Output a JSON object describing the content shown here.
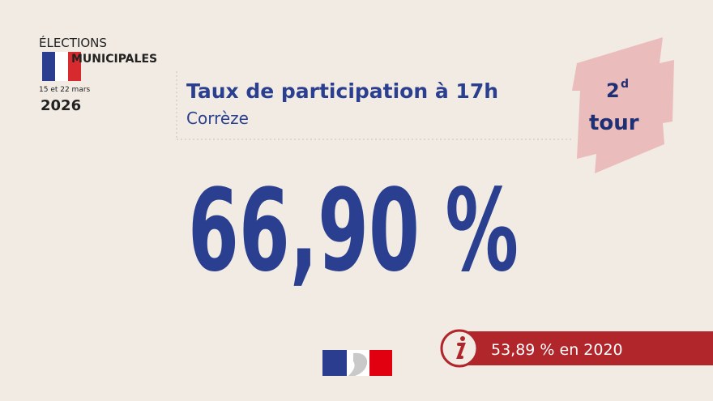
{
  "logo": {
    "line1": "ÉLECTIONS",
    "line2": "MUNICIPALES",
    "dates": "15 et 22 mars",
    "year": "2026"
  },
  "header": {
    "title": "Taux de participation à 17h",
    "subtitle": "Corrèze"
  },
  "badge": {
    "number": "2",
    "superscript": "d",
    "word": "tour"
  },
  "main_value": "66,90 %",
  "note": "53,89 % en 2020"
}
